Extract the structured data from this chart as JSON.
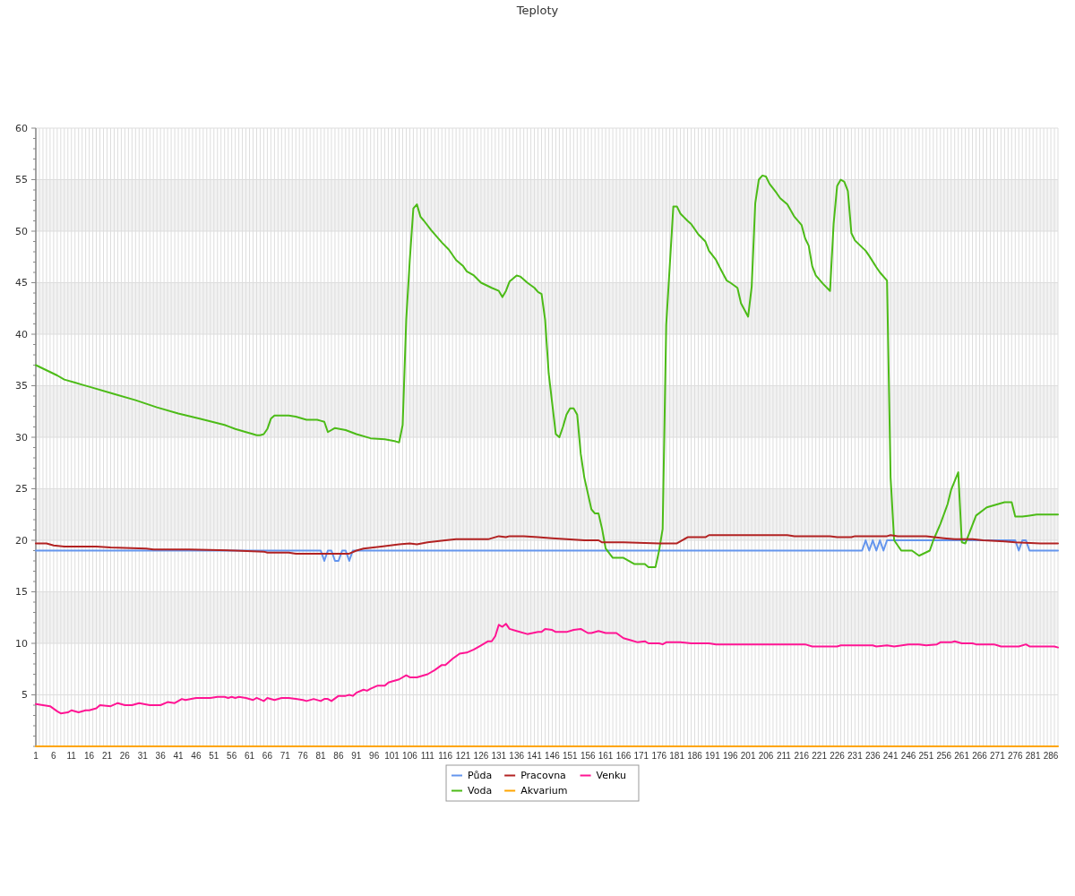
{
  "chart_data": {
    "type": "line",
    "title": "Teploty",
    "xlim": [
      1,
      288
    ],
    "xticks": [
      1,
      {
        "value": 2,
        "label": null
      },
      {
        "value": 3,
        "label": null
      },
      {
        "value": 4,
        "label": null
      },
      {
        "value": 5,
        "label": null
      },
      6,
      {
        "value": 7,
        "label": null
      },
      {
        "value": 8,
        "label": null
      },
      {
        "value": 9,
        "label": null
      },
      {
        "value": 10,
        "label": null
      },
      11,
      {
        "value": 12,
        "label": null
      },
      {
        "value": 13,
        "label": null
      },
      {
        "value": 14,
        "label": null
      },
      {
        "value": 15,
        "label": null
      },
      16,
      {
        "value": 17,
        "label": null
      },
      {
        "value": 18,
        "label": null
      },
      {
        "value": 19,
        "label": null
      },
      {
        "value": 20,
        "label": null
      },
      21,
      {
        "value": 22,
        "label": null
      },
      {
        "value": 23,
        "label": null
      },
      {
        "value": 24,
        "label": null
      },
      {
        "value": 25,
        "label": null
      },
      26,
      {
        "value": 27,
        "label": null
      },
      {
        "value": 28,
        "label": null
      },
      {
        "value": 29,
        "label": null
      },
      {
        "value": 30,
        "label": null
      },
      31,
      {
        "value": 32,
        "label": null
      },
      {
        "value": 33,
        "label": null
      },
      {
        "value": 34,
        "label": null
      },
      {
        "value": 35,
        "label": null
      },
      36,
      {
        "value": 37,
        "label": null
      },
      {
        "value": 38,
        "label": null
      },
      {
        "value": 39,
        "label": null
      },
      {
        "value": 40,
        "label": null
      },
      41,
      {
        "value": 42,
        "label": null
      },
      {
        "value": 43,
        "label": null
      },
      {
        "value": 44,
        "label": null
      },
      {
        "value": 45,
        "label": null
      },
      46,
      {
        "value": 47,
        "label": null
      },
      {
        "value": 48,
        "label": null
      },
      {
        "value": 49,
        "label": null
      },
      {
        "value": 50,
        "label": null
      },
      51,
      {
        "value": 52,
        "label": null
      },
      {
        "value": 53,
        "label": null
      },
      {
        "value": 54,
        "label": null
      },
      {
        "value": 55,
        "label": null
      },
      56,
      {
        "value": 57,
        "label": null
      },
      {
        "value": 58,
        "label": null
      },
      {
        "value": 59,
        "label": null
      },
      {
        "value": 60,
        "label": null
      },
      61,
      {
        "value": 62,
        "label": null
      },
      {
        "value": 63,
        "label": null
      },
      {
        "value": 64,
        "label": null
      },
      {
        "value": 65,
        "label": null
      },
      66,
      {
        "value": 67,
        "label": null
      },
      {
        "value": 68,
        "label": null
      },
      {
        "value": 69,
        "label": null
      },
      {
        "value": 70,
        "label": null
      },
      71,
      {
        "value": 72,
        "label": null
      },
      {
        "value": 73,
        "label": null
      },
      {
        "value": 74,
        "label": null
      },
      {
        "value": 75,
        "label": null
      },
      76,
      {
        "value": 77,
        "label": null
      },
      {
        "value": 78,
        "label": null
      },
      {
        "value": 79,
        "label": null
      },
      {
        "value": 80,
        "label": null
      },
      81,
      {
        "value": 82,
        "label": null
      },
      {
        "value": 83,
        "label": null
      },
      {
        "value": 84,
        "label": null
      },
      {
        "value": 85,
        "label": null
      },
      86,
      {
        "value": 87,
        "label": null
      },
      {
        "value": 88,
        "label": null
      },
      {
        "value": 89,
        "label": null
      },
      {
        "value": 90,
        "label": null
      },
      91,
      {
        "value": 92,
        "label": null
      },
      {
        "value": 93,
        "label": null
      },
      {
        "value": 94,
        "label": null
      },
      {
        "value": 95,
        "label": null
      },
      96,
      {
        "value": 97,
        "label": null
      },
      {
        "value": 98,
        "label": null
      },
      {
        "value": 99,
        "label": null
      },
      {
        "value": 100,
        "label": null
      },
      101,
      {
        "value": 102,
        "label": null
      },
      {
        "value": 103,
        "label": null
      },
      {
        "value": 104,
        "label": null
      },
      {
        "value": 105,
        "label": null
      },
      106,
      {
        "value": 107,
        "label": null
      },
      {
        "value": 108,
        "label": null
      },
      {
        "value": 109,
        "label": null
      },
      {
        "value": 110,
        "label": null
      },
      111,
      {
        "value": 112,
        "label": null
      },
      {
        "value": 113,
        "label": null
      },
      {
        "value": 114,
        "label": null
      },
      {
        "value": 115,
        "label": null
      },
      116,
      {
        "value": 117,
        "label": null
      },
      {
        "value": 118,
        "label": null
      },
      {
        "value": 119,
        "label": null
      },
      {
        "value": 120,
        "label": null
      },
      121,
      {
        "value": 122,
        "label": null
      },
      {
        "value": 123,
        "label": null
      },
      {
        "value": 124,
        "label": null
      },
      {
        "value": 125,
        "label": null
      },
      126,
      {
        "value": 127,
        "label": null
      },
      {
        "value": 128,
        "label": null
      },
      {
        "value": 129,
        "label": null
      },
      {
        "value": 130,
        "label": null
      },
      131,
      {
        "value": 132,
        "label": null
      },
      {
        "value": 133,
        "label": null
      },
      {
        "value": 134,
        "label": null
      },
      {
        "value": 135,
        "label": null
      },
      136,
      {
        "value": 137,
        "label": null
      },
      {
        "value": 138,
        "label": null
      },
      {
        "value": 139,
        "label": null
      },
      {
        "value": 140,
        "label": null
      },
      141,
      {
        "value": 142,
        "label": null
      },
      {
        "value": 143,
        "label": null
      },
      {
        "value": 144,
        "label": null
      },
      {
        "value": 145,
        "label": null
      },
      146,
      {
        "value": 147,
        "label": null
      },
      {
        "value": 148,
        "label": null
      },
      {
        "value": 149,
        "label": null
      },
      {
        "value": 150,
        "label": null
      },
      151,
      {
        "value": 152,
        "label": null
      },
      {
        "value": 153,
        "label": null
      },
      {
        "value": 154,
        "label": null
      },
      {
        "value": 155,
        "label": null
      },
      156,
      {
        "value": 157,
        "label": null
      },
      {
        "value": 158,
        "label": null
      },
      {
        "value": 159,
        "label": null
      },
      {
        "value": 160,
        "label": null
      },
      161,
      {
        "value": 162,
        "label": null
      },
      {
        "value": 163,
        "label": null
      },
      {
        "value": 164,
        "label": null
      },
      {
        "value": 165,
        "label": null
      },
      166,
      {
        "value": 167,
        "label": null
      },
      {
        "value": 168,
        "label": null
      },
      {
        "value": 169,
        "label": null
      },
      {
        "value": 170,
        "label": null
      },
      171,
      {
        "value": 172,
        "label": null
      },
      {
        "value": 173,
        "label": null
      },
      {
        "value": 174,
        "label": null
      },
      {
        "value": 175,
        "label": null
      },
      176,
      {
        "value": 177,
        "label": null
      },
      {
        "value": 178,
        "label": null
      },
      {
        "value": 179,
        "label": null
      },
      {
        "value": 180,
        "label": null
      },
      181,
      {
        "value": 182,
        "label": null
      },
      {
        "value": 183,
        "label": null
      },
      {
        "value": 184,
        "label": null
      },
      {
        "value": 185,
        "label": null
      },
      186,
      {
        "value": 187,
        "label": null
      },
      {
        "value": 188,
        "label": null
      },
      {
        "value": 189,
        "label": null
      },
      {
        "value": 190,
        "label": null
      },
      191,
      {
        "value": 192,
        "label": null
      },
      {
        "value": 193,
        "label": null
      },
      {
        "value": 194,
        "label": null
      },
      {
        "value": 195,
        "label": null
      },
      196,
      {
        "value": 197,
        "label": null
      },
      {
        "value": 198,
        "label": null
      },
      {
        "value": 199,
        "label": null
      },
      {
        "value": 200,
        "label": null
      },
      201,
      {
        "value": 202,
        "label": null
      },
      {
        "value": 203,
        "label": null
      },
      {
        "value": 204,
        "label": null
      },
      {
        "value": 205,
        "label": null
      },
      206,
      {
        "value": 207,
        "label": null
      },
      {
        "value": 208,
        "label": null
      },
      {
        "value": 209,
        "label": null
      },
      {
        "value": 210,
        "label": null
      },
      211,
      {
        "value": 212,
        "label": null
      },
      {
        "value": 213,
        "label": null
      },
      {
        "value": 214,
        "label": null
      },
      {
        "value": 215,
        "label": null
      },
      216,
      {
        "value": 217,
        "label": null
      },
      {
        "value": 218,
        "label": null
      },
      {
        "value": 219,
        "label": null
      },
      {
        "value": 220,
        "label": null
      },
      221,
      {
        "value": 222,
        "label": null
      },
      {
        "value": 223,
        "label": null
      },
      {
        "value": 224,
        "label": null
      },
      {
        "value": 225,
        "label": null
      },
      226,
      {
        "value": 227,
        "label": null
      },
      {
        "value": 228,
        "label": null
      },
      {
        "value": 229,
        "label": null
      },
      {
        "value": 230,
        "label": null
      },
      231,
      {
        "value": 232,
        "label": null
      },
      {
        "value": 233,
        "label": null
      },
      {
        "value": 234,
        "label": null
      },
      {
        "value": 235,
        "label": null
      },
      236,
      {
        "value": 237,
        "label": null
      },
      {
        "value": 238,
        "label": null
      },
      {
        "value": 239,
        "label": null
      },
      {
        "value": 240,
        "label": null
      },
      241,
      {
        "value": 242,
        "label": null
      },
      {
        "value": 243,
        "label": null
      },
      {
        "value": 244,
        "label": null
      },
      {
        "value": 245,
        "label": null
      },
      246,
      {
        "value": 247,
        "label": null
      },
      {
        "value": 248,
        "label": null
      },
      {
        "value": 249,
        "label": null
      },
      {
        "value": 250,
        "label": null
      },
      251,
      {
        "value": 252,
        "label": null
      },
      {
        "value": 253,
        "label": null
      },
      {
        "value": 254,
        "label": null
      },
      {
        "value": 255,
        "label": null
      },
      256,
      {
        "value": 257,
        "label": null
      },
      {
        "value": 258,
        "label": null
      },
      {
        "value": 259,
        "label": null
      },
      {
        "value": 260,
        "label": null
      },
      261,
      {
        "value": 262,
        "label": null
      },
      {
        "value": 263,
        "label": null
      },
      {
        "value": 264,
        "label": null
      },
      {
        "value": 265,
        "label": null
      },
      266,
      {
        "value": 267,
        "label": null
      },
      {
        "value": 268,
        "label": null
      },
      {
        "value": 269,
        "label": null
      },
      {
        "value": 270,
        "label": null
      },
      271,
      {
        "value": 272,
        "label": null
      },
      {
        "value": 273,
        "label": null
      },
      {
        "value": 274,
        "label": null
      },
      {
        "value": 275,
        "label": null
      },
      276,
      {
        "value": 277,
        "label": null
      },
      {
        "value": 278,
        "label": null
      },
      {
        "value": 279,
        "label": null
      },
      {
        "value": 280,
        "label": null
      },
      281,
      {
        "value": 282,
        "label": null
      },
      {
        "value": 283,
        "label": null
      },
      {
        "value": 284,
        "label": null
      },
      {
        "value": 285,
        "label": null
      },
      286,
      {
        "value": 287,
        "label": null
      },
      {
        "value": 288,
        "label": null
      }
    ],
    "ylim": [
      0,
      60
    ],
    "yticks": [
      {
        "value": 0,
        "label": null
      },
      {
        "value": 1,
        "label": null
      },
      {
        "value": 2,
        "label": null
      },
      {
        "value": 3,
        "label": null
      },
      {
        "value": 4,
        "label": null
      },
      5,
      {
        "value": 6,
        "label": null
      },
      {
        "value": 7,
        "label": null
      },
      {
        "value": 8,
        "label": null
      },
      {
        "value": 9,
        "label": null
      },
      10,
      {
        "value": 11,
        "label": null
      },
      {
        "value": 12,
        "label": null
      },
      {
        "value": 13,
        "label": null
      },
      {
        "value": 14,
        "label": null
      },
      15,
      {
        "value": 16,
        "label": null
      },
      {
        "value": 17,
        "label": null
      },
      {
        "value": 18,
        "label": null
      },
      {
        "value": 19,
        "label": null
      },
      20,
      {
        "value": 21,
        "label": null
      },
      {
        "value": 22,
        "label": null
      },
      {
        "value": 23,
        "label": null
      },
      {
        "value": 24,
        "label": null
      },
      25,
      {
        "value": 26,
        "label": null
      },
      {
        "value": 27,
        "label": null
      },
      {
        "value": 28,
        "label": null
      },
      {
        "value": 29,
        "label": null
      },
      30,
      {
        "value": 31,
        "label": null
      },
      {
        "value": 32,
        "label": null
      },
      {
        "value": 33,
        "label": null
      },
      {
        "value": 34,
        "label": null
      },
      35,
      {
        "value": 36,
        "label": null
      },
      {
        "value": 37,
        "label": null
      },
      {
        "value": 38,
        "label": null
      },
      {
        "value": 39,
        "label": null
      },
      40,
      {
        "value": 41,
        "label": null
      },
      {
        "value": 42,
        "label": null
      },
      {
        "value": 43,
        "label": null
      },
      {
        "value": 44,
        "label": null
      },
      45,
      {
        "value": 46,
        "label": null
      },
      {
        "value": 47,
        "label": null
      },
      {
        "value": 48,
        "label": null
      },
      {
        "value": 49,
        "label": null
      },
      50,
      {
        "value": 51,
        "label": null
      },
      {
        "value": 52,
        "label": null
      },
      {
        "value": 53,
        "label": null
      },
      {
        "value": 54,
        "label": null
      },
      55,
      {
        "value": 56,
        "label": null
      },
      {
        "value": 57,
        "label": null
      },
      {
        "value": 58,
        "label": null
      },
      {
        "value": 59,
        "label": null
      },
      60
    ],
    "grid": true,
    "legend": "bottom",
    "series": [
      {
        "name": "Půda",
        "color": "#6495ed",
        "x": [
          1,
          81,
          82,
          83,
          84,
          85,
          86,
          87,
          88,
          89,
          90,
          233,
          234,
          235,
          236,
          237,
          238,
          239,
          240,
          276,
          277,
          278,
          279,
          280,
          288
        ],
        "values": [
          19,
          19,
          18,
          19,
          19,
          18,
          18,
          19,
          19,
          18,
          19,
          19,
          20,
          19,
          20,
          19,
          20,
          19,
          20,
          20,
          19,
          20,
          20,
          19,
          19
        ]
      },
      {
        "name": "Voda",
        "color": "#4cbb17",
        "x": [
          1,
          4,
          7,
          9,
          12,
          14,
          16,
          23,
          29,
          35,
          41,
          47,
          54,
          57,
          60,
          62,
          63,
          64,
          65,
          66,
          67,
          68,
          72,
          74,
          77,
          80,
          81,
          82,
          83,
          85,
          88,
          91,
          95,
          99,
          102,
          103,
          104,
          105,
          106,
          107,
          108,
          109,
          110,
          112,
          115,
          117,
          119,
          121,
          122,
          124,
          126,
          129,
          131,
          132,
          133,
          134,
          136,
          137,
          139,
          141,
          142,
          143,
          144,
          145,
          147,
          148,
          149,
          150,
          151,
          152,
          153,
          154,
          155,
          157,
          158,
          159,
          160,
          161,
          163,
          166,
          167,
          169,
          172,
          173,
          175,
          176,
          177,
          178,
          180,
          181,
          182,
          184,
          185,
          187,
          189,
          190,
          192,
          193,
          195,
          196,
          198,
          199,
          201,
          202,
          203,
          204,
          205,
          206,
          207,
          209,
          210,
          212,
          214,
          216,
          217,
          218,
          219,
          220,
          222,
          224,
          225,
          226,
          227,
          228,
          229,
          230,
          231,
          234,
          235,
          237,
          238,
          240,
          241,
          242,
          244,
          247,
          249,
          252,
          253,
          255,
          257,
          258,
          260,
          261,
          262,
          265,
          268,
          273,
          275,
          276,
          278,
          280,
          282,
          288
        ],
        "values": [
          37.0,
          36.5,
          36.0,
          35.6,
          35.3,
          35.1,
          34.9,
          34.2,
          33.6,
          32.9,
          32.3,
          31.8,
          31.2,
          30.8,
          30.5,
          30.3,
          30.2,
          30.2,
          30.3,
          30.8,
          31.8,
          32.1,
          32.1,
          32.0,
          31.7,
          31.7,
          31.6,
          31.5,
          30.5,
          30.9,
          30.7,
          30.3,
          29.9,
          29.8,
          29.6,
          29.5,
          31.2,
          41.4,
          47.2,
          52.2,
          52.6,
          51.4,
          51.0,
          50.1,
          48.9,
          48.2,
          47.2,
          46.6,
          46.1,
          45.7,
          45.0,
          44.5,
          44.2,
          43.6,
          44.2,
          45.1,
          45.7,
          45.6,
          45.0,
          44.5,
          44.1,
          43.9,
          41.4,
          36.2,
          30.3,
          30.0,
          31.0,
          32.2,
          32.8,
          32.8,
          32.2,
          28.4,
          26.1,
          23.0,
          22.6,
          22.6,
          21.1,
          19.2,
          18.3,
          18.3,
          18.1,
          17.7,
          17.7,
          17.4,
          17.4,
          19.0,
          21.1,
          40.9,
          52.4,
          52.4,
          51.7,
          51.0,
          50.7,
          49.7,
          49.0,
          48.1,
          47.2,
          46.5,
          45.2,
          45.0,
          44.5,
          43.0,
          41.7,
          44.6,
          52.7,
          55.0,
          55.4,
          55.3,
          54.6,
          53.7,
          53.2,
          52.6,
          51.4,
          50.6,
          49.3,
          48.6,
          46.6,
          45.7,
          44.9,
          44.2,
          50.7,
          54.4,
          55.0,
          54.8,
          53.9,
          49.8,
          49.1,
          48.1,
          47.6,
          46.5,
          46.0,
          45.2,
          26.1,
          20.0,
          19.0,
          19.0,
          18.5,
          19.0,
          20.0,
          21.6,
          23.5,
          24.9,
          26.6,
          19.8,
          19.7,
          22.4,
          23.2,
          23.7,
          23.7,
          22.3,
          22.3,
          22.4,
          22.5,
          22.5
        ]
      },
      {
        "name": "Pracovna",
        "color": "#b22222",
        "x": [
          1,
          4,
          6,
          9,
          18,
          22,
          32,
          34,
          44,
          57,
          65,
          66,
          72,
          74,
          89,
          91,
          93,
          98,
          103,
          106,
          108,
          111,
          116,
          119,
          128,
          131,
          133,
          134,
          138,
          142,
          146,
          150,
          155,
          159,
          160,
          166,
          176,
          181,
          184,
          189,
          190,
          203,
          212,
          214,
          224,
          226,
          230,
          231,
          240,
          241,
          243,
          251,
          256,
          259,
          264,
          267,
          273,
          276,
          283,
          288
        ],
        "values": [
          19.7,
          19.7,
          19.5,
          19.4,
          19.4,
          19.3,
          19.2,
          19.1,
          19.1,
          19.0,
          18.9,
          18.8,
          18.8,
          18.7,
          18.7,
          19.0,
          19.2,
          19.4,
          19.6,
          19.7,
          19.6,
          19.8,
          20.0,
          20.1,
          20.1,
          20.4,
          20.3,
          20.4,
          20.4,
          20.3,
          20.2,
          20.1,
          20.0,
          20.0,
          19.8,
          19.8,
          19.7,
          19.7,
          20.3,
          20.3,
          20.5,
          20.5,
          20.5,
          20.4,
          20.4,
          20.3,
          20.3,
          20.4,
          20.4,
          20.5,
          20.4,
          20.4,
          20.2,
          20.1,
          20.1,
          20.0,
          19.9,
          19.8,
          19.7,
          19.7
        ]
      },
      {
        "name": "Akvarium",
        "color": "#ffa500",
        "x": [
          1,
          288
        ],
        "values": [
          0,
          0
        ]
      },
      {
        "name": "Venku",
        "color": "#ff1493",
        "x": [
          1,
          3,
          5,
          7,
          8,
          10,
          11,
          13,
          15,
          16,
          18,
          19,
          22,
          24,
          26,
          28,
          30,
          33,
          36,
          38,
          40,
          42,
          43,
          46,
          50,
          52,
          54,
          55,
          56,
          57,
          58,
          60,
          62,
          63,
          65,
          66,
          68,
          70,
          72,
          74,
          76,
          77,
          79,
          81,
          82,
          83,
          84,
          86,
          88,
          89,
          90,
          91,
          93,
          94,
          95,
          97,
          99,
          100,
          101,
          103,
          105,
          106,
          108,
          111,
          113,
          115,
          116,
          118,
          120,
          122,
          124,
          126,
          128,
          129,
          130,
          131,
          132,
          133,
          134,
          136,
          139,
          142,
          143,
          144,
          146,
          147,
          150,
          152,
          154,
          156,
          157,
          159,
          161,
          164,
          166,
          168,
          170,
          172,
          173,
          176,
          177,
          178,
          182,
          185,
          190,
          192,
          217,
          219,
          226,
          227,
          236,
          237,
          240,
          242,
          246,
          249,
          251,
          254,
          255,
          258,
          259,
          261,
          264,
          265,
          270,
          271,
          272,
          277,
          279,
          280,
          287,
          288
        ],
        "values": [
          4.1,
          4.0,
          3.9,
          3.4,
          3.2,
          3.3,
          3.5,
          3.3,
          3.5,
          3.5,
          3.7,
          4.0,
          3.9,
          4.2,
          4.0,
          4.0,
          4.2,
          4.0,
          4.0,
          4.3,
          4.2,
          4.6,
          4.5,
          4.7,
          4.7,
          4.8,
          4.8,
          4.7,
          4.8,
          4.7,
          4.8,
          4.7,
          4.5,
          4.7,
          4.4,
          4.7,
          4.5,
          4.7,
          4.7,
          4.6,
          4.5,
          4.4,
          4.6,
          4.4,
          4.6,
          4.6,
          4.4,
          4.9,
          4.9,
          5.0,
          4.9,
          5.2,
          5.5,
          5.4,
          5.6,
          5.9,
          5.9,
          6.2,
          6.3,
          6.5,
          6.9,
          6.7,
          6.7,
          7.0,
          7.4,
          7.9,
          7.9,
          8.5,
          9.0,
          9.1,
          9.4,
          9.8,
          10.2,
          10.2,
          10.7,
          11.8,
          11.6,
          11.9,
          11.4,
          11.2,
          10.9,
          11.1,
          11.1,
          11.4,
          11.3,
          11.1,
          11.1,
          11.3,
          11.4,
          11.0,
          11.0,
          11.2,
          11.0,
          11.0,
          10.5,
          10.3,
          10.1,
          10.2,
          10.0,
          10.0,
          9.9,
          10.1,
          10.1,
          10.0,
          10.0,
          9.9,
          9.9,
          9.7,
          9.7,
          9.8,
          9.8,
          9.7,
          9.8,
          9.7,
          9.9,
          9.9,
          9.8,
          9.9,
          10.1,
          10.1,
          10.2,
          10.0,
          10.0,
          9.9,
          9.9,
          9.8,
          9.7,
          9.7,
          9.9,
          9.7,
          9.7,
          9.6
        ]
      }
    ]
  }
}
